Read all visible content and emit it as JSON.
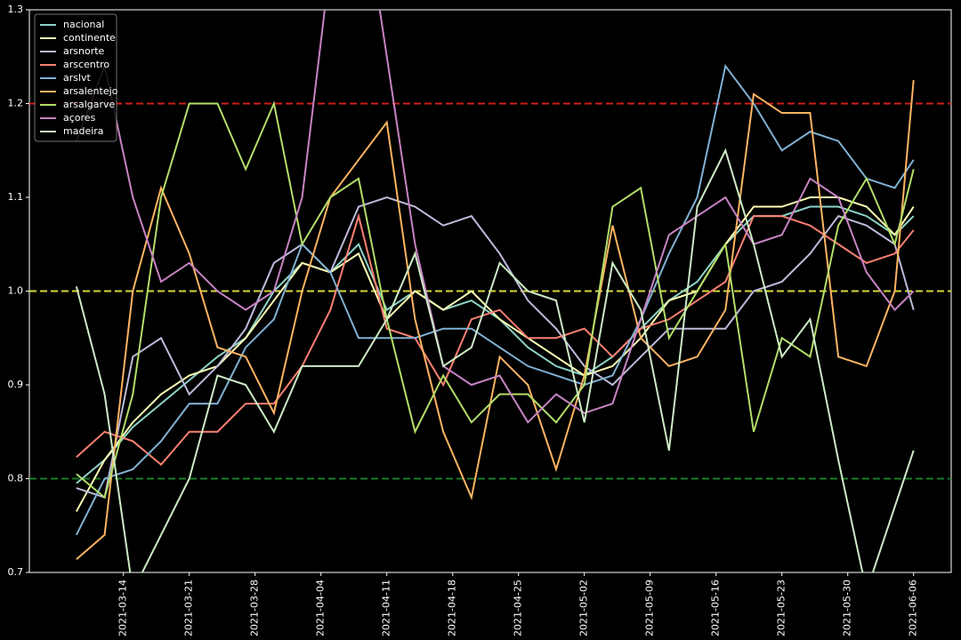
{
  "chart_data": {
    "type": "line",
    "x": [
      "2021-03-09",
      "2021-03-12",
      "2021-03-15",
      "2021-03-18",
      "2021-03-21",
      "2021-03-24",
      "2021-03-27",
      "2021-03-30",
      "2021-04-02",
      "2021-04-05",
      "2021-04-08",
      "2021-04-11",
      "2021-04-14",
      "2021-04-17",
      "2021-04-20",
      "2021-04-23",
      "2021-04-26",
      "2021-04-29",
      "2021-05-02",
      "2021-05-05",
      "2021-05-08",
      "2021-05-11",
      "2021-05-14",
      "2021-05-17",
      "2021-05-20",
      "2021-05-23",
      "2021-05-26",
      "2021-05-29",
      "2021-06-01",
      "2021-06-04",
      "2021-06-06"
    ],
    "xlim": [
      "2021-03-04",
      "2021-06-10"
    ],
    "xticks": [
      "2021-03-14",
      "2021-03-21",
      "2021-03-28",
      "2021-04-04",
      "2021-04-11",
      "2021-04-18",
      "2021-04-25",
      "2021-05-02",
      "2021-05-09",
      "2021-05-16",
      "2021-05-23",
      "2021-05-30",
      "2021-06-06"
    ],
    "ylim": [
      0.7,
      1.3
    ],
    "yticks": [
      0.7,
      0.8,
      0.9,
      {
        "value": 1,
        "label": "1.0"
      },
      1.1,
      1.2,
      1.3
    ],
    "legend": "upper left",
    "reference_lines": [
      {
        "value": 1.2,
        "color": "#cc1f1a"
      },
      {
        "value": 1,
        "color": "#d6d63a"
      },
      {
        "value": 0.8,
        "color": "#1a7a2a"
      }
    ],
    "series": [
      {
        "name": "nacional",
        "color": "#8dd3c7",
        "values": [
          0.795,
          0.82,
          0.855,
          0.88,
          0.905,
          0.93,
          0.95,
          1.0,
          1.03,
          1.02,
          1.05,
          0.98,
          1.0,
          0.98,
          0.99,
          0.97,
          0.94,
          0.92,
          0.91,
          0.93,
          0.96,
          0.99,
          1.01,
          1.05,
          1.08,
          1.08,
          1.09,
          1.09,
          1.08,
          1.06,
          1.08
        ]
      },
      {
        "name": "continente",
        "color": "#ffffb3",
        "values": [
          0.765,
          0.82,
          0.86,
          0.89,
          0.91,
          0.92,
          0.95,
          0.99,
          1.03,
          1.02,
          1.04,
          0.97,
          1.0,
          0.98,
          1.0,
          0.97,
          0.95,
          0.93,
          0.91,
          0.92,
          0.95,
          0.99,
          1.0,
          1.05,
          1.09,
          1.09,
          1.1,
          1.1,
          1.09,
          1.06,
          1.09
        ]
      },
      {
        "name": "arsnorte",
        "color": "#bebada",
        "values": [
          0.79,
          0.78,
          0.93,
          0.95,
          0.89,
          0.92,
          0.96,
          1.03,
          1.05,
          1.02,
          1.09,
          1.1,
          1.09,
          1.07,
          1.08,
          1.04,
          0.99,
          0.96,
          0.92,
          0.9,
          0.93,
          0.96,
          0.96,
          0.96,
          1.0,
          1.01,
          1.04,
          1.08,
          1.07,
          1.05,
          0.98
        ]
      },
      {
        "name": "arscentro",
        "color": "#fb8072",
        "values": [
          0.823,
          0.85,
          0.84,
          0.815,
          0.85,
          0.85,
          0.88,
          0.88,
          0.92,
          0.98,
          1.08,
          0.96,
          0.95,
          0.9,
          0.97,
          0.98,
          0.95,
          0.95,
          0.96,
          0.93,
          0.96,
          0.97,
          0.99,
          1.01,
          1.08,
          1.08,
          1.07,
          1.05,
          1.03,
          1.04,
          1.065
        ]
      },
      {
        "name": "arslvt",
        "color": "#80b1d3",
        "values": [
          0.74,
          0.8,
          0.81,
          0.84,
          0.88,
          0.88,
          0.94,
          0.97,
          1.05,
          1.02,
          0.95,
          0.95,
          0.95,
          0.96,
          0.96,
          0.94,
          0.92,
          0.91,
          0.9,
          0.91,
          0.97,
          1.04,
          1.1,
          1.24,
          1.2,
          1.15,
          1.17,
          1.16,
          1.12,
          1.11,
          1.14
        ]
      },
      {
        "name": "arsalentejo",
        "color": "#fdb462",
        "values": [
          0.714,
          0.74,
          1.0,
          1.11,
          1.04,
          0.94,
          0.93,
          0.87,
          1.0,
          1.1,
          1.14,
          1.18,
          0.97,
          0.85,
          0.78,
          0.93,
          0.9,
          0.81,
          0.91,
          1.07,
          0.95,
          0.92,
          0.93,
          0.98,
          1.21,
          1.19,
          1.19,
          0.93,
          0.92,
          1.0,
          1.225
        ]
      },
      {
        "name": "arsalgarve",
        "color": "#b3de69",
        "values": [
          0.805,
          0.78,
          0.89,
          1.1,
          1.2,
          1.2,
          1.13,
          1.2,
          1.05,
          1.1,
          1.12,
          0.97,
          0.85,
          0.91,
          0.86,
          0.89,
          0.89,
          0.86,
          0.9,
          1.09,
          1.11,
          0.95,
          1.0,
          1.05,
          0.85,
          0.95,
          0.93,
          1.07,
          1.12,
          1.05,
          1.13
        ]
      },
      {
        "name": "açores",
        "color": "#c883c4",
        "values": [
          1.16,
          1.24,
          1.1,
          1.01,
          1.03,
          1.0,
          0.98,
          1.0,
          1.1,
          1.35,
          1.45,
          1.25,
          1.05,
          0.92,
          0.9,
          0.91,
          0.86,
          0.89,
          0.87,
          0.88,
          0.97,
          1.06,
          1.08,
          1.1,
          1.05,
          1.06,
          1.12,
          1.1,
          1.02,
          0.98,
          1.0
        ]
      },
      {
        "name": "madeira",
        "color": "#ccebc5",
        "values": [
          1.005,
          0.89,
          0.68,
          0.74,
          0.8,
          0.91,
          0.9,
          0.85,
          0.92,
          0.92,
          0.92,
          0.97,
          1.04,
          0.92,
          0.94,
          1.03,
          1.0,
          0.99,
          0.86,
          1.03,
          0.98,
          0.83,
          1.09,
          1.15,
          1.05,
          0.93,
          0.97,
          0.82,
          0.68,
          0.77,
          0.83
        ]
      }
    ]
  }
}
